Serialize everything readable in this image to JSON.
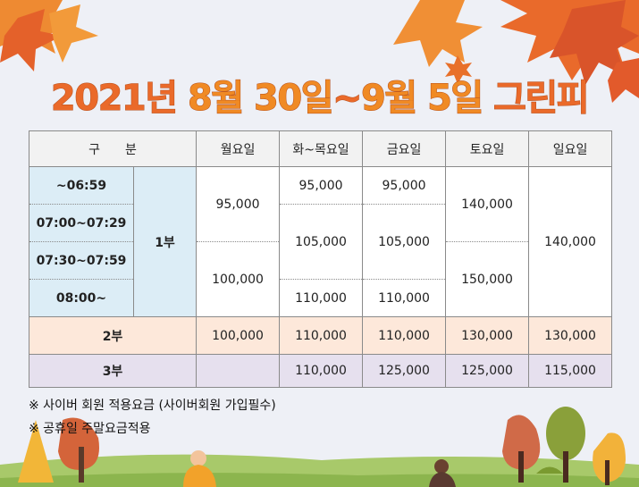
{
  "title": {
    "year": "2021년 ",
    "date1": "8월 30일",
    "tilde": "~",
    "date2": "9월 5일",
    "suffix": " 그린피"
  },
  "table": {
    "headers": [
      "구　　분",
      "월요일",
      "화~목요일",
      "금요일",
      "토요일",
      "일요일"
    ],
    "part1": {
      "label": "1부",
      "times": [
        "~06:59",
        "07:00~07:29",
        "07:30~07:59",
        "08:00~"
      ],
      "mon": [
        "95,000",
        "100,000"
      ],
      "tuethu": [
        "95,000",
        "105,000",
        "110,000"
      ],
      "fri": [
        "95,000",
        "105,000",
        "110,000"
      ],
      "sat": [
        "140,000",
        "150,000"
      ],
      "sun": "140,000"
    },
    "part2": {
      "label": "2부",
      "values": [
        "100,000",
        "110,000",
        "110,000",
        "130,000",
        "130,000"
      ]
    },
    "part3": {
      "label": "3부",
      "values": [
        "",
        "110,000",
        "125,000",
        "125,000",
        "115,000"
      ]
    }
  },
  "notes": [
    "※ 사이버 회원 적용요금 (사이버회원 가입필수)",
    "※ 공휴일 주말요금적용"
  ],
  "colors": {
    "title_orange": "#ea6a2a",
    "part1_blue": "#dcedf6",
    "part2_peach": "#fde8da",
    "part3_lavender": "#e6e0ee"
  }
}
